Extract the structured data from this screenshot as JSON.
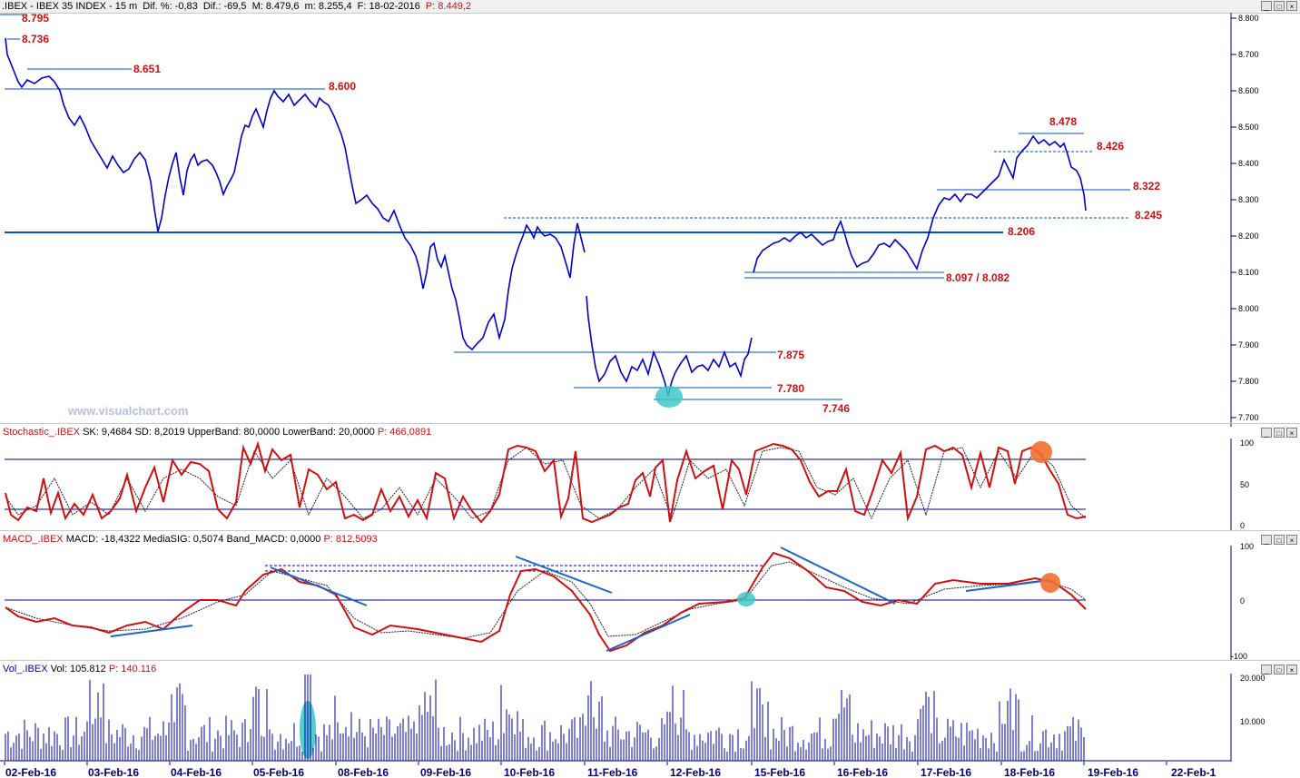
{
  "price_header": {
    "prefix": ".IBEX - IBEX 35 INDEX - 15 m",
    "dif_pct": "Dif. %: -0,83",
    "dif": "Dif.: -69,5",
    "max": "M: 8.479,6",
    "min": "m: 8.255,4",
    "date": "F: 18-02-2016",
    "price": "P: 8.449,2"
  },
  "watermark": "www.visualchart.com",
  "levels": {
    "l8795": "8.795",
    "l8736": "8.736",
    "l8651": "8.651",
    "l8600": "8.600",
    "l8478": "8.478",
    "l8426": "8.426",
    "l8322": "8.322",
    "l8245": "8.245",
    "l8206": "8.206",
    "l8097": "8.097 / 8.082",
    "l7875": "7.875",
    "l7780": "7.780",
    "l7746": "7.746"
  },
  "price_axis": [
    "8.800",
    "8.700",
    "8.600",
    "8.500",
    "8.400",
    "8.300",
    "8.200",
    "8.100",
    "8.000",
    "7.900",
    "7.800",
    "7.700"
  ],
  "stoch_header": {
    "name": "Stochastic_.IBEX",
    "sk": "SK: 9,4684",
    "sd": "SD: 8,2019",
    "upper": "UpperBand: 80,0000",
    "lower": "LowerBand: 20,0000",
    "p": "P: 466,0891"
  },
  "stoch_axis": [
    "100",
    "50",
    "0"
  ],
  "macd_header": {
    "name": "MACD_.IBEX",
    "macd": "MACD: -18,4322",
    "sig": "MediaSIG: 0,5074",
    "band": "Band_MACD: 0,0000",
    "p": "P: 812,5093"
  },
  "macd_axis": [
    "100",
    "0",
    "-100"
  ],
  "vol_header": {
    "name": "Vol_.IBEX",
    "vol": "Vol: 105.812",
    "p": "P: 140.116"
  },
  "vol_axis": [
    "20.000",
    "10.000"
  ],
  "dates": [
    "02-Feb-16",
    "03-Feb-16",
    "04-Feb-16",
    "05-Feb-16",
    "08-Feb-16",
    "09-Feb-16",
    "10-Feb-16",
    "11-Feb-16",
    "12-Feb-16",
    "15-Feb-16",
    "16-Feb-16",
    "17-Feb-16",
    "18-Feb-16",
    "19-Feb-16",
    "22-Feb-1"
  ],
  "colors": {
    "price": "#0000c8",
    "stoch": "#d01010",
    "trend": "#1e64c8",
    "highlight_cyan": "#40c8c8",
    "highlight_orange": "#f07030",
    "level_text": "#d01010"
  }
}
